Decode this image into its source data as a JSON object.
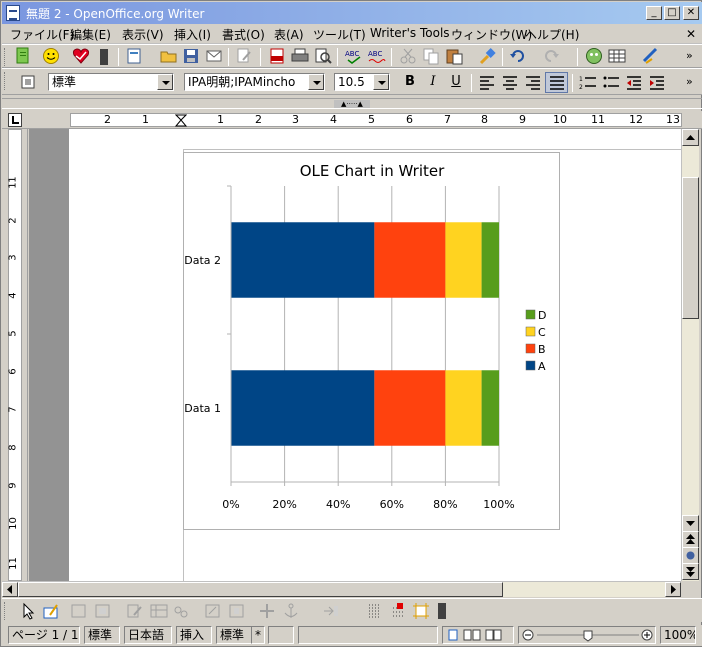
{
  "window": {
    "title": "無題 2 - OpenOffice.org Writer",
    "controls": {
      "minimize": "_",
      "maximize": "□",
      "close": "✕"
    }
  },
  "menu": {
    "items": [
      "ファイル(F)",
      "編集(E)",
      "表示(V)",
      "挿入(I)",
      "書式(O)",
      "表(A)",
      "ツール(T)",
      "Writer's Tools",
      "ウィンドウ(W)",
      "ヘルプ(H)"
    ],
    "close_doc": "✕"
  },
  "format": {
    "style": "標準",
    "font": "IPA明朝;IPAMincho",
    "size": "10.5",
    "bold": "B",
    "italic": "I",
    "underline": "U"
  },
  "ruler": {
    "h_labels": [
      "2",
      "1",
      "1",
      "2",
      "3",
      "4",
      "5",
      "6",
      "7",
      "8",
      "9",
      "10",
      "11",
      "12",
      "13"
    ],
    "v_labels": [
      "1",
      "1",
      "2",
      "3",
      "4",
      "5",
      "6",
      "7",
      "8",
      "9",
      "10",
      "11"
    ]
  },
  "chart_data": {
    "type": "bar",
    "orientation": "horizontal",
    "stacked": "percent",
    "title": "OLE Chart in Writer",
    "categories": [
      "Data 1",
      "Data 2"
    ],
    "series": [
      {
        "name": "A",
        "color": "#004586",
        "values": [
          53.5,
          53.5
        ]
      },
      {
        "name": "B",
        "color": "#ff420e",
        "values": [
          26.5,
          26.5
        ]
      },
      {
        "name": "C",
        "color": "#ffd320",
        "values": [
          13.5,
          13.5
        ]
      },
      {
        "name": "D",
        "color": "#579d1c",
        "values": [
          6.5,
          6.5
        ]
      }
    ],
    "x_ticks": [
      "0%",
      "20%",
      "40%",
      "60%",
      "80%",
      "100%"
    ],
    "xlim": [
      0,
      100
    ],
    "grid": true,
    "legend": "right",
    "legend_order": [
      "D",
      "C",
      "B",
      "A"
    ]
  },
  "status": {
    "page": "ページ 1 / 1",
    "style": "標準",
    "language": "日本語",
    "insert_mode": "挿入",
    "selection_mode": "標準",
    "modified": "*",
    "zoom": "100%"
  }
}
